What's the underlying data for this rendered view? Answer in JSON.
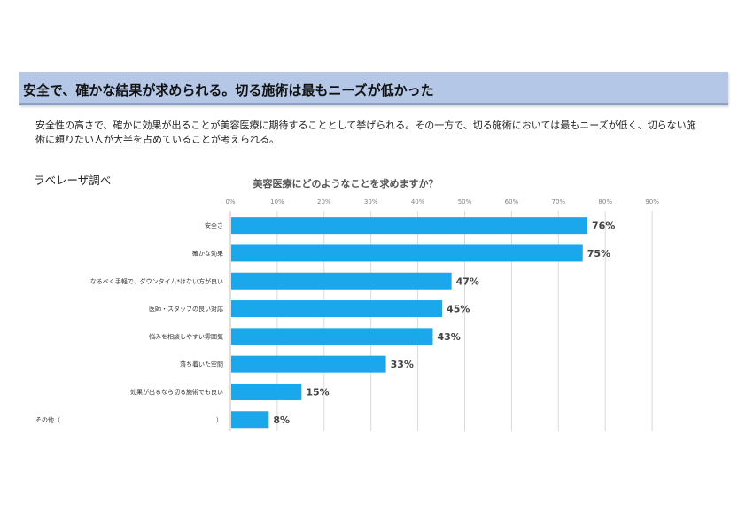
{
  "header": {
    "title": "安全で、確かな結果が求められる。切る施術は最もニーズが低かった"
  },
  "description": "安全性の高さで、確かに効果が出ることが美容医療に期待することとして挙げられる。その一方で、切る施術においては最もニーズが低く、切らない施術に頼りたい人が大半を占めていることが考えられる。",
  "source_label": "ラベレーザ調べ",
  "colors": {
    "bar": "#1aa7ec",
    "banner": "#b4c7e7",
    "grid": "#d9d9d9"
  },
  "chart_data": {
    "type": "bar",
    "orientation": "horizontal",
    "title": "美容医療にどのようなことを求めますか？",
    "categories": [
      "安全さ",
      "確かな効果",
      "なるべく手軽で、ダウンタイム*はない方が良い",
      "医師・スタッフの良い対応",
      "悩みを相談しやすい雰囲気",
      "落ち着いた空間",
      "効果が出るなら切る施術でも良い",
      "その他（　　　　　　　　　　　　　　）"
    ],
    "values": [
      76,
      75,
      47,
      45,
      43,
      33,
      15,
      8
    ],
    "data_labels": [
      "76%",
      "75%",
      "47%",
      "45%",
      "43%",
      "33%",
      "15%",
      "8%"
    ],
    "xlim": [
      0,
      90
    ],
    "x_ticks": [
      "0%",
      "10%",
      "20%",
      "30%",
      "40%",
      "50%",
      "60%",
      "70%",
      "80%",
      "90%"
    ],
    "grid": true,
    "xlabel": "",
    "ylabel": ""
  }
}
